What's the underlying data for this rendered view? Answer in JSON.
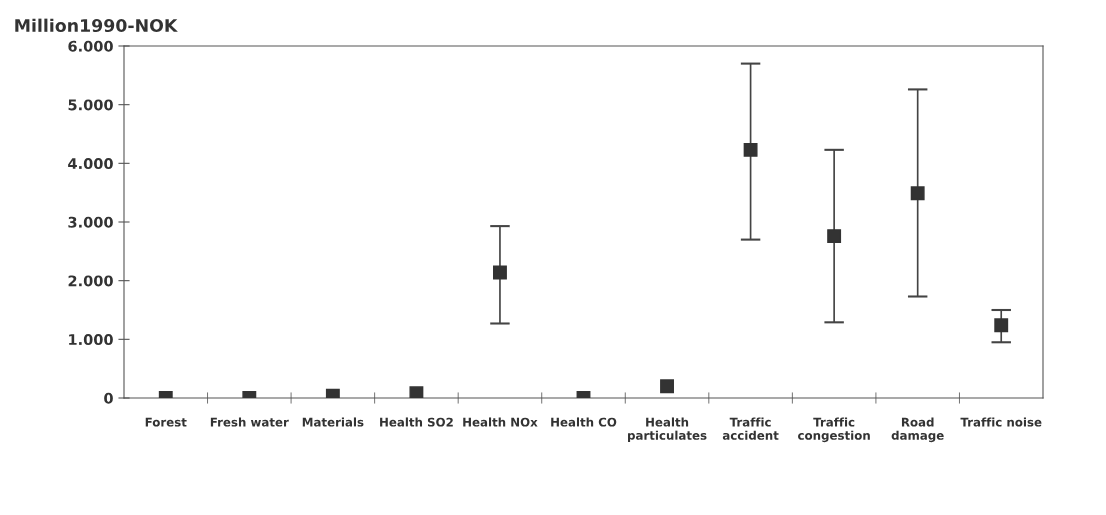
{
  "chart_data": {
    "type": "scatter",
    "ylabel": "Million1990-NOK",
    "categories": [
      "Forest",
      "Fresh water",
      "Materials",
      "Health SO2",
      "Health NOx",
      "Health CO",
      "Health\nparticulates",
      "Traffic\naccident",
      "Traffic\ncongestion",
      "Road\ndamage",
      "Traffic noise"
    ],
    "values": [
      0,
      0,
      40,
      80,
      2140,
      0,
      200,
      4230,
      2760,
      3490,
      1240
    ],
    "errors": [
      null,
      null,
      null,
      null,
      [
        1270,
        2930
      ],
      null,
      null,
      [
        2700,
        5700
      ],
      [
        1290,
        4230
      ],
      [
        1730,
        5260
      ],
      [
        950,
        1500
      ]
    ],
    "color": "#333333",
    "marker": "square",
    "ylim": [
      0,
      6000
    ],
    "yticks": [
      {
        "value": 0,
        "label": "0"
      },
      {
        "value": 1000,
        "label": "1.000"
      },
      {
        "value": 2000,
        "label": "2.000"
      },
      {
        "value": 3000,
        "label": "3.000"
      },
      {
        "value": 4000,
        "label": "4.000"
      },
      {
        "value": 5000,
        "label": "5.000"
      },
      {
        "value": 6000,
        "label": "6.000"
      }
    ],
    "grid": false,
    "legend": false
  }
}
